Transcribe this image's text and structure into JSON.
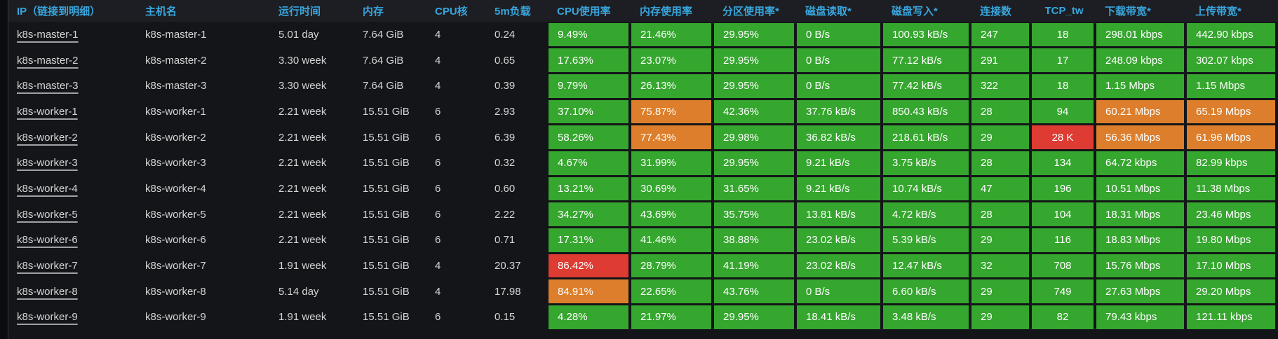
{
  "colors": {
    "green": "#35a62e",
    "orange": "#dc7e2b",
    "red": "#de3b32",
    "header_text": "#38a5dc",
    "row_text": "#d4d5d6",
    "header_bg": "#1c1e23",
    "body_bg": "#131518"
  },
  "table": {
    "columns": [
      {
        "key": "ip",
        "label": "IP（链接到明细）",
        "type": "link",
        "align": "left"
      },
      {
        "key": "hostname",
        "label": "主机名",
        "type": "plain",
        "align": "left"
      },
      {
        "key": "uptime",
        "label": "运行时间",
        "type": "plain",
        "align": "left"
      },
      {
        "key": "memory",
        "label": "内存",
        "type": "plain",
        "align": "left"
      },
      {
        "key": "cpu_cores",
        "label": "CPU核",
        "type": "plain",
        "align": "left"
      },
      {
        "key": "load_5m",
        "label": "5m负载",
        "type": "plain",
        "align": "left"
      },
      {
        "key": "cpu_usage",
        "label": "CPU使用率",
        "type": "colored",
        "align": "left"
      },
      {
        "key": "mem_usage",
        "label": "内存使用率",
        "type": "colored",
        "align": "left"
      },
      {
        "key": "partition_usage",
        "label": "分区使用率*",
        "type": "colored",
        "align": "left"
      },
      {
        "key": "disk_read",
        "label": "磁盘读取*",
        "type": "colored",
        "align": "left"
      },
      {
        "key": "disk_write",
        "label": "磁盘写入*",
        "type": "colored",
        "align": "left"
      },
      {
        "key": "connections",
        "label": "连接数",
        "type": "colored",
        "align": "left"
      },
      {
        "key": "tcp_tw",
        "label": "TCP_tw",
        "type": "colored",
        "align": "center"
      },
      {
        "key": "download_bw",
        "label": "下载带宽*",
        "type": "colored",
        "align": "left"
      },
      {
        "key": "upload_bw",
        "label": "上传带宽*",
        "type": "colored",
        "align": "left"
      }
    ],
    "rows": [
      {
        "ip": "k8s-master-1",
        "hostname": "k8s-master-1",
        "uptime": "5.01 day",
        "memory": "7.64 GiB",
        "cpu_cores": "4",
        "load_5m": "0.24",
        "cpu_usage": {
          "text": "9.49%",
          "level": "green"
        },
        "mem_usage": {
          "text": "21.46%",
          "level": "green"
        },
        "partition_usage": {
          "text": "29.95%",
          "level": "green"
        },
        "disk_read": {
          "text": "0 B/s",
          "level": "green"
        },
        "disk_write": {
          "text": "100.93 kB/s",
          "level": "green"
        },
        "connections": {
          "text": "247",
          "level": "green"
        },
        "tcp_tw": {
          "text": "18",
          "level": "green"
        },
        "download_bw": {
          "text": "298.01 kbps",
          "level": "green"
        },
        "upload_bw": {
          "text": "442.90 kbps",
          "level": "green"
        }
      },
      {
        "ip": "k8s-master-2",
        "hostname": "k8s-master-2",
        "uptime": "3.30 week",
        "memory": "7.64 GiB",
        "cpu_cores": "4",
        "load_5m": "0.65",
        "cpu_usage": {
          "text": "17.63%",
          "level": "green"
        },
        "mem_usage": {
          "text": "23.07%",
          "level": "green"
        },
        "partition_usage": {
          "text": "29.95%",
          "level": "green"
        },
        "disk_read": {
          "text": "0 B/s",
          "level": "green"
        },
        "disk_write": {
          "text": "77.12 kB/s",
          "level": "green"
        },
        "connections": {
          "text": "291",
          "level": "green"
        },
        "tcp_tw": {
          "text": "17",
          "level": "green"
        },
        "download_bw": {
          "text": "248.09 kbps",
          "level": "green"
        },
        "upload_bw": {
          "text": "302.07 kbps",
          "level": "green"
        }
      },
      {
        "ip": "k8s-master-3",
        "hostname": "k8s-master-3",
        "uptime": "3.30 week",
        "memory": "7.64 GiB",
        "cpu_cores": "4",
        "load_5m": "0.39",
        "cpu_usage": {
          "text": "9.79%",
          "level": "green"
        },
        "mem_usage": {
          "text": "26.13%",
          "level": "green"
        },
        "partition_usage": {
          "text": "29.95%",
          "level": "green"
        },
        "disk_read": {
          "text": "0 B/s",
          "level": "green"
        },
        "disk_write": {
          "text": "77.42 kB/s",
          "level": "green"
        },
        "connections": {
          "text": "322",
          "level": "green"
        },
        "tcp_tw": {
          "text": "18",
          "level": "green"
        },
        "download_bw": {
          "text": "1.15 Mbps",
          "level": "green"
        },
        "upload_bw": {
          "text": "1.15 Mbps",
          "level": "green"
        }
      },
      {
        "ip": "k8s-worker-1",
        "hostname": "k8s-worker-1",
        "uptime": "2.21 week",
        "memory": "15.51 GiB",
        "cpu_cores": "6",
        "load_5m": "2.93",
        "cpu_usage": {
          "text": "37.10%",
          "level": "green"
        },
        "mem_usage": {
          "text": "75.87%",
          "level": "orange"
        },
        "partition_usage": {
          "text": "42.36%",
          "level": "green"
        },
        "disk_read": {
          "text": "37.76 kB/s",
          "level": "green"
        },
        "disk_write": {
          "text": "850.43 kB/s",
          "level": "green"
        },
        "connections": {
          "text": "28",
          "level": "green"
        },
        "tcp_tw": {
          "text": "94",
          "level": "green"
        },
        "download_bw": {
          "text": "60.21 Mbps",
          "level": "orange"
        },
        "upload_bw": {
          "text": "65.19 Mbps",
          "level": "orange"
        }
      },
      {
        "ip": "k8s-worker-2",
        "hostname": "k8s-worker-2",
        "uptime": "2.21 week",
        "memory": "15.51 GiB",
        "cpu_cores": "6",
        "load_5m": "6.39",
        "cpu_usage": {
          "text": "58.26%",
          "level": "green"
        },
        "mem_usage": {
          "text": "77.43%",
          "level": "orange"
        },
        "partition_usage": {
          "text": "29.98%",
          "level": "green"
        },
        "disk_read": {
          "text": "36.82 kB/s",
          "level": "green"
        },
        "disk_write": {
          "text": "218.61 kB/s",
          "level": "green"
        },
        "connections": {
          "text": "29",
          "level": "green"
        },
        "tcp_tw": {
          "text": "28 K",
          "level": "red"
        },
        "download_bw": {
          "text": "56.36 Mbps",
          "level": "orange"
        },
        "upload_bw": {
          "text": "61.96 Mbps",
          "level": "orange"
        }
      },
      {
        "ip": "k8s-worker-3",
        "hostname": "k8s-worker-3",
        "uptime": "2.21 week",
        "memory": "15.51 GiB",
        "cpu_cores": "6",
        "load_5m": "0.32",
        "cpu_usage": {
          "text": "4.67%",
          "level": "green"
        },
        "mem_usage": {
          "text": "31.99%",
          "level": "green"
        },
        "partition_usage": {
          "text": "29.95%",
          "level": "green"
        },
        "disk_read": {
          "text": "9.21 kB/s",
          "level": "green"
        },
        "disk_write": {
          "text": "3.75 kB/s",
          "level": "green"
        },
        "connections": {
          "text": "28",
          "level": "green"
        },
        "tcp_tw": {
          "text": "134",
          "level": "green"
        },
        "download_bw": {
          "text": "64.72 kbps",
          "level": "green"
        },
        "upload_bw": {
          "text": "82.99 kbps",
          "level": "green"
        }
      },
      {
        "ip": "k8s-worker-4",
        "hostname": "k8s-worker-4",
        "uptime": "2.21 week",
        "memory": "15.51 GiB",
        "cpu_cores": "6",
        "load_5m": "0.60",
        "cpu_usage": {
          "text": "13.21%",
          "level": "green"
        },
        "mem_usage": {
          "text": "30.69%",
          "level": "green"
        },
        "partition_usage": {
          "text": "31.65%",
          "level": "green"
        },
        "disk_read": {
          "text": "9.21 kB/s",
          "level": "green"
        },
        "disk_write": {
          "text": "10.74 kB/s",
          "level": "green"
        },
        "connections": {
          "text": "47",
          "level": "green"
        },
        "tcp_tw": {
          "text": "196",
          "level": "green"
        },
        "download_bw": {
          "text": "10.51 Mbps",
          "level": "green"
        },
        "upload_bw": {
          "text": "11.38 Mbps",
          "level": "green"
        }
      },
      {
        "ip": "k8s-worker-5",
        "hostname": "k8s-worker-5",
        "uptime": "2.21 week",
        "memory": "15.51 GiB",
        "cpu_cores": "6",
        "load_5m": "2.22",
        "cpu_usage": {
          "text": "34.27%",
          "level": "green"
        },
        "mem_usage": {
          "text": "43.69%",
          "level": "green"
        },
        "partition_usage": {
          "text": "35.75%",
          "level": "green"
        },
        "disk_read": {
          "text": "13.81 kB/s",
          "level": "green"
        },
        "disk_write": {
          "text": "4.72 kB/s",
          "level": "green"
        },
        "connections": {
          "text": "28",
          "level": "green"
        },
        "tcp_tw": {
          "text": "104",
          "level": "green"
        },
        "download_bw": {
          "text": "18.31 Mbps",
          "level": "green"
        },
        "upload_bw": {
          "text": "23.46 Mbps",
          "level": "green"
        }
      },
      {
        "ip": "k8s-worker-6",
        "hostname": "k8s-worker-6",
        "uptime": "2.21 week",
        "memory": "15.51 GiB",
        "cpu_cores": "6",
        "load_5m": "0.71",
        "cpu_usage": {
          "text": "17.31%",
          "level": "green"
        },
        "mem_usage": {
          "text": "41.46%",
          "level": "green"
        },
        "partition_usage": {
          "text": "38.88%",
          "level": "green"
        },
        "disk_read": {
          "text": "23.02 kB/s",
          "level": "green"
        },
        "disk_write": {
          "text": "5.39 kB/s",
          "level": "green"
        },
        "connections": {
          "text": "29",
          "level": "green"
        },
        "tcp_tw": {
          "text": "116",
          "level": "green"
        },
        "download_bw": {
          "text": "18.83 Mbps",
          "level": "green"
        },
        "upload_bw": {
          "text": "19.80 Mbps",
          "level": "green"
        }
      },
      {
        "ip": "k8s-worker-7",
        "hostname": "k8s-worker-7",
        "uptime": "1.91 week",
        "memory": "15.51 GiB",
        "cpu_cores": "4",
        "load_5m": "20.37",
        "cpu_usage": {
          "text": "86.42%",
          "level": "red"
        },
        "mem_usage": {
          "text": "28.79%",
          "level": "green"
        },
        "partition_usage": {
          "text": "41.19%",
          "level": "green"
        },
        "disk_read": {
          "text": "23.02 kB/s",
          "level": "green"
        },
        "disk_write": {
          "text": "12.47 kB/s",
          "level": "green"
        },
        "connections": {
          "text": "32",
          "level": "green"
        },
        "tcp_tw": {
          "text": "708",
          "level": "green"
        },
        "download_bw": {
          "text": "15.76 Mbps",
          "level": "green"
        },
        "upload_bw": {
          "text": "17.10 Mbps",
          "level": "green"
        }
      },
      {
        "ip": "k8s-worker-8",
        "hostname": "k8s-worker-8",
        "uptime": "5.14 day",
        "memory": "15.51 GiB",
        "cpu_cores": "4",
        "load_5m": "17.98",
        "cpu_usage": {
          "text": "84.91%",
          "level": "orange"
        },
        "mem_usage": {
          "text": "22.65%",
          "level": "green"
        },
        "partition_usage": {
          "text": "43.76%",
          "level": "green"
        },
        "disk_read": {
          "text": "0 B/s",
          "level": "green"
        },
        "disk_write": {
          "text": "6.60 kB/s",
          "level": "green"
        },
        "connections": {
          "text": "29",
          "level": "green"
        },
        "tcp_tw": {
          "text": "749",
          "level": "green"
        },
        "download_bw": {
          "text": "27.63 Mbps",
          "level": "green"
        },
        "upload_bw": {
          "text": "29.20 Mbps",
          "level": "green"
        }
      },
      {
        "ip": "k8s-worker-9",
        "hostname": "k8s-worker-9",
        "uptime": "1.91 week",
        "memory": "15.51 GiB",
        "cpu_cores": "6",
        "load_5m": "0.15",
        "cpu_usage": {
          "text": "4.28%",
          "level": "green"
        },
        "mem_usage": {
          "text": "21.97%",
          "level": "green"
        },
        "partition_usage": {
          "text": "29.95%",
          "level": "green"
        },
        "disk_read": {
          "text": "18.41 kB/s",
          "level": "green"
        },
        "disk_write": {
          "text": "3.48 kB/s",
          "level": "green"
        },
        "connections": {
          "text": "29",
          "level": "green"
        },
        "tcp_tw": {
          "text": "82",
          "level": "green"
        },
        "download_bw": {
          "text": "79.43 kbps",
          "level": "green"
        },
        "upload_bw": {
          "text": "121.11 kbps",
          "level": "green"
        }
      }
    ]
  }
}
